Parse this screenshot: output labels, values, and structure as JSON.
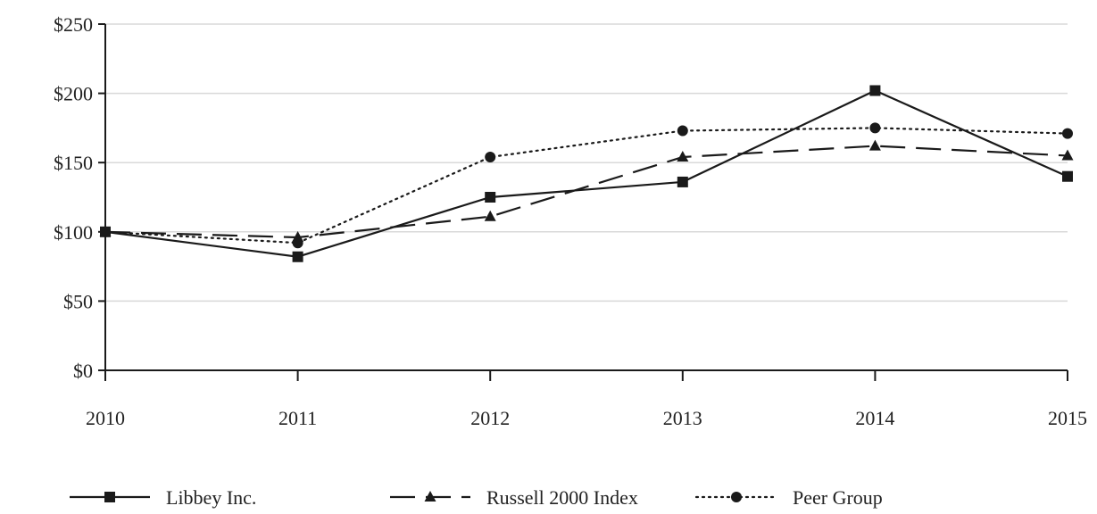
{
  "chart_data": {
    "type": "line",
    "categories": [
      "2010",
      "2011",
      "2012",
      "2013",
      "2014",
      "2015"
    ],
    "y_tick_labels": [
      "$0",
      "$50",
      "$100",
      "$150",
      "$200",
      "$250"
    ],
    "y_ticks": [
      0,
      50,
      100,
      150,
      200,
      250
    ],
    "ylim": [
      0,
      250
    ],
    "grid": true,
    "legend_position": "bottom",
    "series": [
      {
        "name": "Libbey Inc.",
        "values": [
          100,
          82,
          125,
          136,
          202,
          140
        ],
        "style": "solid",
        "marker": "square",
        "color": "#1a1a1a"
      },
      {
        "name": "Russell 2000 Index",
        "values": [
          100,
          96,
          111,
          154,
          162,
          155
        ],
        "style": "dashed",
        "marker": "triangle",
        "color": "#1a1a1a"
      },
      {
        "name": "Peer Group",
        "values": [
          100,
          92,
          154,
          173,
          175,
          171
        ],
        "style": "dotted",
        "marker": "circle",
        "color": "#1a1a1a"
      }
    ]
  }
}
